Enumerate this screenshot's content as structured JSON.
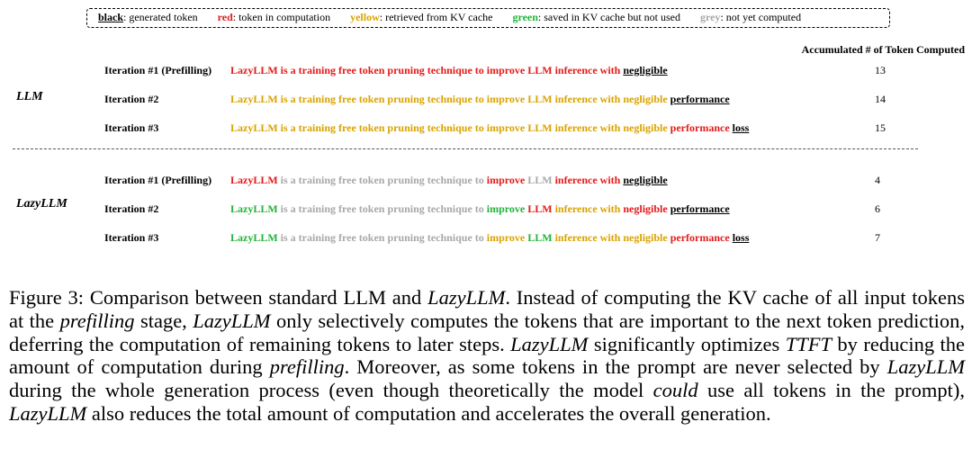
{
  "legend": [
    {
      "key": "black",
      "desc": ": generated token",
      "color": "#000000"
    },
    {
      "key": "red",
      "desc": ": token in computation",
      "color": "#e41a1a"
    },
    {
      "key": "yellow",
      "desc": ": retrieved from KV cache",
      "color": "#d9a300"
    },
    {
      "key": "green",
      "desc": ": saved in KV cache but not used",
      "color": "#22b33a"
    },
    {
      "key": "grey",
      "desc": ": not yet computed",
      "color": "#a8a8a8"
    }
  ],
  "accumulated_header": "Accumulated # of Token Computed",
  "sections": [
    {
      "model": "LLM",
      "rows": [
        {
          "iteration": "Iteration #1 (Prefilling)",
          "count": "13",
          "tokens": [
            {
              "t": "LazyLLM is a training free token pruning technique to improve LLM inference with ",
              "c": "red"
            },
            {
              "t": "negligible",
              "c": "black",
              "u": true
            }
          ]
        },
        {
          "iteration": "Iteration #2",
          "count": "14",
          "tokens": [
            {
              "t": "LazyLLM is a training free token pruning technique to improve LLM inference with negligible ",
              "c": "yellow"
            },
            {
              "t": "performance",
              "c": "black",
              "u": true
            }
          ]
        },
        {
          "iteration": "Iteration #3",
          "count": "15",
          "tokens": [
            {
              "t": "LazyLLM is a training free token pruning technique to improve LLM inference with negligible ",
              "c": "yellow"
            },
            {
              "t": "performance ",
              "c": "red"
            },
            {
              "t": "loss",
              "c": "black",
              "u": true
            }
          ]
        }
      ]
    },
    {
      "model": "LazyLLM",
      "rows": [
        {
          "iteration": "Iteration #1 (Prefilling)",
          "count": "4",
          "tokens": [
            {
              "t": "LazyLLM ",
              "c": "red"
            },
            {
              "t": "is a training free token pruning technique to ",
              "c": "grey"
            },
            {
              "t": "improve ",
              "c": "red"
            },
            {
              "t": "LLM ",
              "c": "grey"
            },
            {
              "t": "inference with ",
              "c": "red"
            },
            {
              "t": "negligible",
              "c": "black",
              "u": true
            }
          ]
        },
        {
          "iteration": "Iteration #2",
          "count": "6",
          "tokens": [
            {
              "t": "LazyLLM ",
              "c": "green"
            },
            {
              "t": "is a training free token pruning technique to ",
              "c": "grey"
            },
            {
              "t": "improve ",
              "c": "green"
            },
            {
              "t": "LLM ",
              "c": "red"
            },
            {
              "t": "inference with ",
              "c": "yellow"
            },
            {
              "t": "negligible ",
              "c": "red"
            },
            {
              "t": "performance",
              "c": "black",
              "u": true
            }
          ]
        },
        {
          "iteration": "Iteration #3",
          "count": "7",
          "tokens": [
            {
              "t": "LazyLLM ",
              "c": "green"
            },
            {
              "t": "is a training free token pruning technique to ",
              "c": "grey"
            },
            {
              "t": "improve ",
              "c": "yellow"
            },
            {
              "t": "LLM ",
              "c": "green"
            },
            {
              "t": "inference with ",
              "c": "yellow"
            },
            {
              "t": "negligible ",
              "c": "yellow"
            },
            {
              "t": "performance ",
              "c": "red"
            },
            {
              "t": "loss",
              "c": "black",
              "u": true
            }
          ]
        }
      ]
    }
  ],
  "caption": [
    {
      "t": "Figure 3: Comparison between standard LLM and "
    },
    {
      "t": "LazyLLM",
      "i": true
    },
    {
      "t": ". Instead of computing the KV cache of all input tokens at the "
    },
    {
      "t": "prefilling",
      "i": true
    },
    {
      "t": " stage, "
    },
    {
      "t": "LazyLLM",
      "i": true
    },
    {
      "t": " only selectively computes the tokens that are important to the next token prediction, deferring the computation of remaining tokens to later steps. "
    },
    {
      "t": "LazyLLM",
      "i": true
    },
    {
      "t": " significantly optimizes "
    },
    {
      "t": "TTFT",
      "i": true
    },
    {
      "t": " by reducing the amount of computation during "
    },
    {
      "t": "prefilling",
      "i": true
    },
    {
      "t": ". Moreover, as some tokens in the prompt are never selected by "
    },
    {
      "t": "LazyLLM",
      "i": true
    },
    {
      "t": " during the whole generation process (even though theoretically the model "
    },
    {
      "t": "could",
      "i": true
    },
    {
      "t": " use all tokens in the prompt), "
    },
    {
      "t": "LazyLLM",
      "i": true
    },
    {
      "t": " also reduces the total amount of computation and accelerates the overall generation."
    }
  ]
}
